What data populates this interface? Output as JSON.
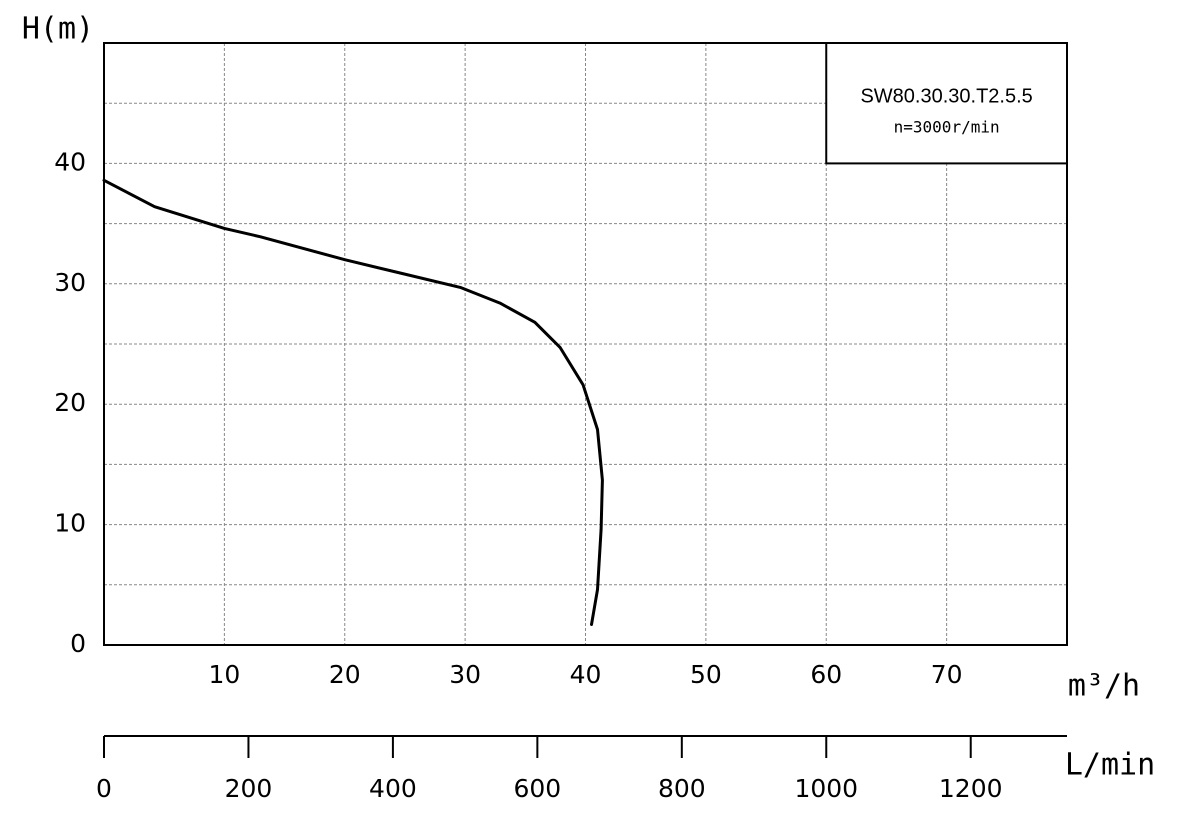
{
  "chart_data": {
    "type": "line",
    "y_label": "H(m)",
    "x_label": "m³/h",
    "x2_label": "L/min",
    "annotation": "n=3000r/min",
    "series": [
      {
        "name": "SW80.30.30.T2.5.5",
        "color": "#000000",
        "x": [
          0,
          4.2,
          10,
          13,
          20,
          24.6,
          29.6,
          32.9,
          35.8,
          37.9,
          39.8,
          41.0,
          41.4,
          41.3,
          41.0,
          40.5
        ],
        "values": [
          38.6,
          36.4,
          34.6,
          33.9,
          32.0,
          30.9,
          29.7,
          28.4,
          26.8,
          24.7,
          21.6,
          17.9,
          13.7,
          9.6,
          4.6,
          1.7
        ]
      }
    ],
    "xlim": [
      0,
      80
    ],
    "xticks": [
      10,
      20,
      30,
      40,
      50,
      60,
      70
    ],
    "ylim": [
      0,
      50
    ],
    "yticks": [
      0,
      10,
      20,
      30,
      40
    ],
    "ygrid_minor": [
      5,
      15,
      25,
      35,
      45
    ],
    "x2lim": [
      0,
      1333.3
    ],
    "x2ticks": [
      0,
      200,
      400,
      600,
      800,
      1000,
      1200
    ],
    "grid": true
  }
}
